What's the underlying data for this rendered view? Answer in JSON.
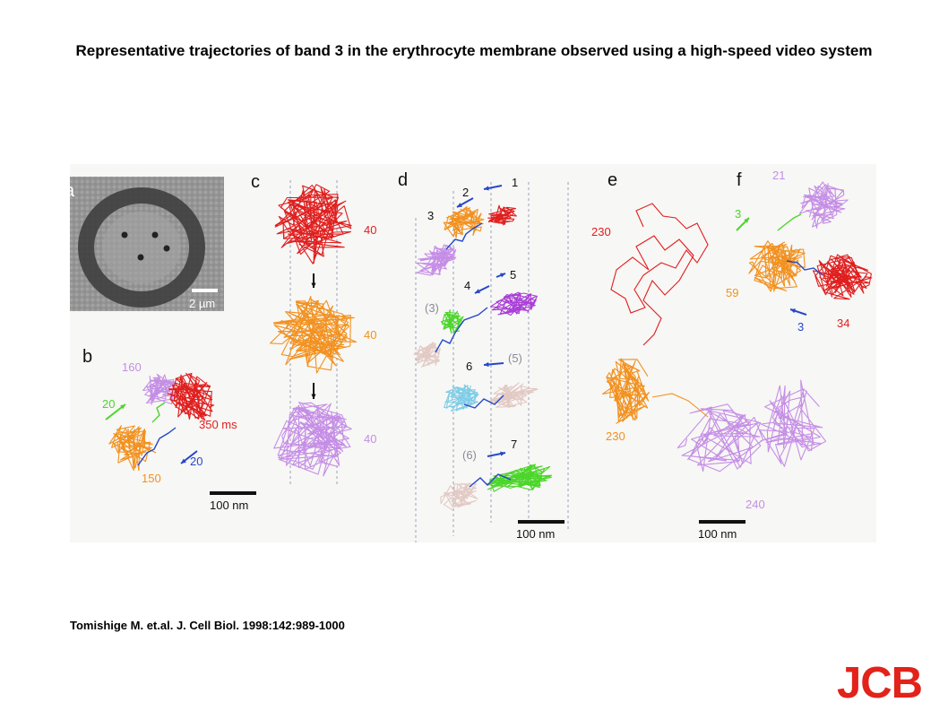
{
  "title": "Representative trajectories of band 3 in the erythrocyte membrane observed using a high-speed video system",
  "citation": "Tomishige M. et.al. J. Cell Biol. 1998:142:989-1000",
  "logo_text": "JCB",
  "colors": {
    "red": "#e01e1e",
    "orange": "#f2911f",
    "violet": "#c58ee6",
    "purple": "#a93fd6",
    "green": "#4cd52a",
    "blue": "#2747c8",
    "cyan": "#7fcde6",
    "pink": "#e2c9c4",
    "gray_label": "#8a8a9a",
    "logo": "#e2231a"
  },
  "figure": {
    "panel_labels": {
      "a": "a",
      "b": "b",
      "c": "c",
      "d": "d",
      "e": "e",
      "f": "f"
    },
    "panel_a": {
      "scale_label": "2 µm"
    },
    "panel_b": {
      "labels": [
        "160",
        "20",
        "350 ms",
        "150",
        "20"
      ],
      "scale_label": "100 nm"
    },
    "panel_c": {
      "labels": [
        "40",
        "40",
        "40"
      ]
    },
    "panel_d": {
      "labels": [
        "1",
        "2",
        "3",
        "4",
        "5",
        "(3)",
        "6",
        "(5)",
        "(6)",
        "7"
      ],
      "scale_label": "100 nm"
    },
    "panel_e": {
      "labels": [
        "230",
        "230",
        "240"
      ],
      "scale_label": "100 nm"
    },
    "panel_f": {
      "labels": [
        "21",
        "3",
        "59",
        "34",
        "3"
      ]
    }
  }
}
